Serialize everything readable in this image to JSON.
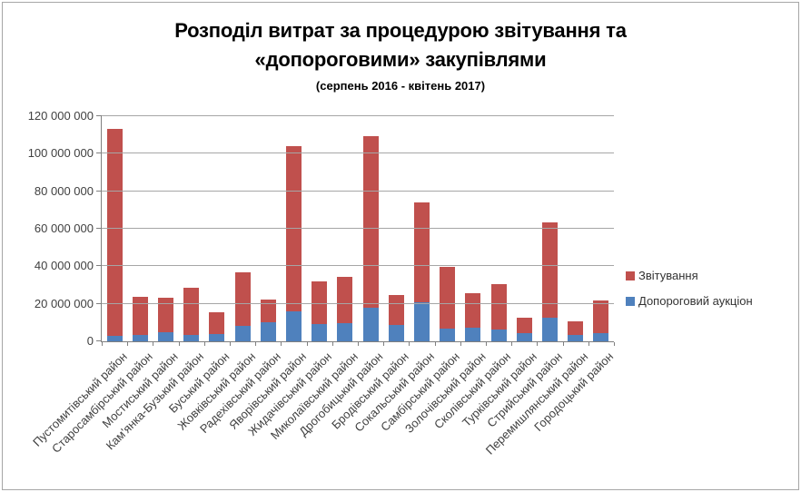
{
  "frame": {
    "border_color": "#a6a6a6",
    "background": "#ffffff"
  },
  "chart_data": {
    "type": "bar",
    "stacked": true,
    "title_line1": "Розподіл витрат за процедурою звітування та",
    "title_line2": "«допороговими» закупівлями",
    "subtitle": "(серпень 2016 - квітень 2017)",
    "legend_position": "right",
    "grid": true,
    "ylim": [
      0,
      120000000
    ],
    "ytick_interval": 20000000,
    "ytick_labels": [
      "0",
      "20 000 000",
      "40 000 000",
      "60 000 000",
      "80 000 000",
      "100 000 000",
      "120 000 000"
    ],
    "categories": [
      "Пустомитівський район",
      "Старосамбірський район",
      "Мостиський район",
      "Кам'янка-Бузький район",
      "Буський район",
      "Жовківський район",
      "Радехівський район",
      "Яворівський район",
      "Жидачівський район",
      "Миколаївський район",
      "Дрогобицький район",
      "Бродівський район",
      "Сокальський район",
      "Самбірський район",
      "Золочівський район",
      "Сколівський район",
      "Турківський район",
      "Стрийський район",
      "Перемишлянський район",
      "Городоцький район"
    ],
    "series": [
      {
        "name": "Звітування",
        "color": "#c0504d",
        "stack_position": "top",
        "values": [
          110000000,
          20000000,
          18000000,
          25000000,
          11500000,
          29000000,
          12500000,
          88000000,
          23000000,
          25000000,
          91500000,
          16000000,
          53000000,
          32500000,
          18000000,
          24000000,
          8000000,
          51000000,
          7300000,
          17700000
        ]
      },
      {
        "name": "Допороговий аукціон",
        "color": "#4f81bd",
        "stack_position": "bottom",
        "values": [
          3000000,
          3500000,
          5000000,
          3500000,
          4000000,
          8000000,
          10000000,
          16000000,
          9000000,
          9500000,
          18000000,
          8500000,
          21000000,
          7000000,
          7500000,
          6500000,
          4500000,
          12500000,
          3200000,
          4300000
        ]
      }
    ],
    "colors": {
      "gridline": "#a6a6a6",
      "axis": "#808080",
      "axis_text": "#404040",
      "legend_text": "#333333"
    }
  }
}
